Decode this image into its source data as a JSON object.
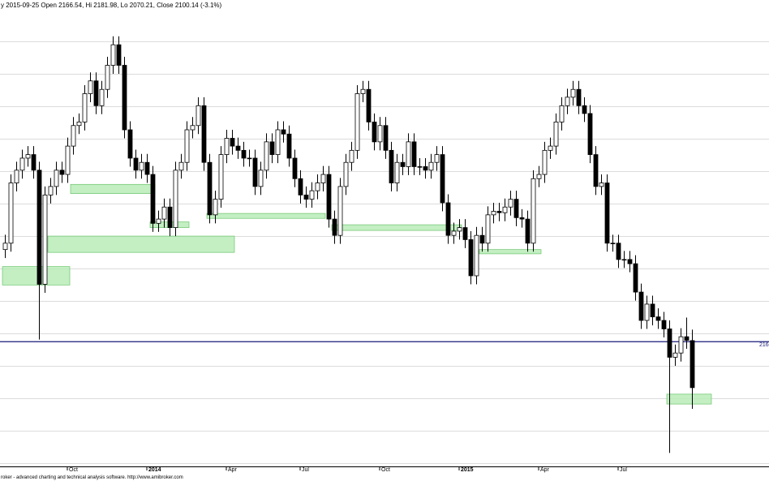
{
  "chart_data": {
    "type": "candlestick",
    "title": "y 2015-09-25 Open 2166.54, Hi 2181.98, Lo 2070.21, Close 2100.14 (-3.1%)",
    "footer": "roker - advanced charting and technical analysis software. http://www.amibroker.com",
    "categories": [
      null,
      null,
      null,
      null,
      null,
      null,
      null,
      null,
      null,
      null,
      null,
      "Oct",
      null,
      null,
      null,
      null,
      null,
      null,
      null,
      null,
      null,
      null,
      null,
      null,
      null,
      "2014",
      null,
      null,
      null,
      null,
      null,
      null,
      null,
      null,
      null,
      null,
      null,
      null,
      null,
      "Apr",
      null,
      null,
      null,
      null,
      null,
      null,
      null,
      null,
      null,
      null,
      null,
      null,
      "Jul",
      null,
      null,
      null,
      null,
      null,
      null,
      null,
      null,
      null,
      null,
      null,
      null,
      null,
      "Oct",
      null,
      null,
      null,
      null,
      null,
      null,
      null,
      null,
      null,
      null,
      null,
      null,
      null,
      "2015",
      null,
      null,
      null,
      null,
      null,
      null,
      null,
      null,
      null,
      null,
      null,
      null,
      null,
      "Apr",
      null,
      null,
      null,
      null,
      null,
      null,
      null,
      null,
      null,
      null,
      null,
      null,
      null,
      "Jul",
      null,
      null,
      null,
      null,
      null,
      null,
      null,
      null,
      null,
      null,
      null,
      null,
      null
    ],
    "open": [
      2295,
      2304,
      2389,
      2407,
      2424,
      2429,
      2407,
      2246,
      2372,
      2384,
      2407,
      2401,
      2441,
      2470,
      2475,
      2515,
      2533,
      2498,
      2521,
      2555,
      2584,
      2555,
      2464,
      2424,
      2407,
      2418,
      2401,
      2332,
      2338,
      2355,
      2326,
      2407,
      2418,
      2464,
      2470,
      2498,
      2418,
      2344,
      2366,
      2429,
      2452,
      2441,
      2435,
      2424,
      2424,
      2384,
      2407,
      2447,
      2429,
      2464,
      2458,
      2424,
      2395,
      2372,
      2366,
      2378,
      2389,
      2401,
      2338,
      2315,
      2384,
      2418,
      2435,
      2515,
      2521,
      2475,
      2447,
      2470,
      2435,
      2389,
      2418,
      2412,
      2447,
      2412,
      2412,
      2407,
      2418,
      2429,
      2361,
      2315,
      2321,
      2326,
      2309,
      2258,
      2315,
      2304,
      2344,
      2349,
      2347,
      2355,
      2366,
      2340,
      2338,
      2304,
      2395,
      2401,
      2435,
      2441,
      2475,
      2498,
      2510,
      2521,
      2498,
      2487,
      2429,
      2384,
      2389,
      2304,
      2304,
      2281,
      2281,
      2275,
      2235,
      2195,
      2218,
      2200,
      2195,
      2183,
      2143,
      2149,
      2172,
      2166.54
    ],
    "high": [
      2316,
      2401,
      2419,
      2436,
      2441,
      2441,
      2419,
      2384,
      2396,
      2419,
      2419,
      2453,
      2482,
      2487,
      2527,
      2545,
      2545,
      2533,
      2567,
      2596,
      2596,
      2567,
      2476,
      2436,
      2430,
      2430,
      2413,
      2350,
      2367,
      2367,
      2419,
      2430,
      2476,
      2482,
      2510,
      2510,
      2430,
      2378,
      2441,
      2464,
      2464,
      2453,
      2447,
      2436,
      2436,
      2419,
      2459,
      2459,
      2476,
      2476,
      2470,
      2436,
      2407,
      2384,
      2390,
      2401,
      2413,
      2413,
      2350,
      2396,
      2430,
      2447,
      2527,
      2533,
      2533,
      2487,
      2482,
      2482,
      2447,
      2430,
      2430,
      2459,
      2459,
      2424,
      2424,
      2430,
      2441,
      2441,
      2373,
      2333,
      2338,
      2338,
      2321,
      2327,
      2327,
      2356,
      2361,
      2361,
      2367,
      2378,
      2378,
      2352,
      2350,
      2407,
      2413,
      2447,
      2453,
      2487,
      2510,
      2522,
      2533,
      2533,
      2510,
      2499,
      2441,
      2401,
      2401,
      2316,
      2316,
      2293,
      2293,
      2287,
      2247,
      2230,
      2230,
      2212,
      2207,
      2195,
      2161,
      2184,
      2199,
      2181.98
    ],
    "low": [
      2283,
      2292,
      2377,
      2395,
      2412,
      2395,
      2168,
      2234,
      2360,
      2372,
      2389,
      2389,
      2429,
      2458,
      2463,
      2503,
      2486,
      2486,
      2509,
      2543,
      2543,
      2452,
      2412,
      2395,
      2395,
      2389,
      2320,
      2320,
      2326,
      2314,
      2314,
      2395,
      2406,
      2452,
      2458,
      2406,
      2332,
      2332,
      2354,
      2417,
      2429,
      2423,
      2412,
      2412,
      2372,
      2372,
      2395,
      2417,
      2417,
      2446,
      2412,
      2383,
      2360,
      2354,
      2354,
      2366,
      2377,
      2326,
      2303,
      2303,
      2372,
      2406,
      2423,
      2503,
      2463,
      2435,
      2435,
      2423,
      2377,
      2377,
      2400,
      2400,
      2400,
      2400,
      2395,
      2395,
      2406,
      2349,
      2303,
      2303,
      2309,
      2297,
      2246,
      2246,
      2292,
      2292,
      2332,
      2335,
      2335,
      2343,
      2328,
      2326,
      2292,
      2292,
      2383,
      2389,
      2423,
      2429,
      2463,
      2486,
      2498,
      2486,
      2475,
      2417,
      2372,
      2372,
      2292,
      2292,
      2269,
      2269,
      2263,
      2223,
      2183,
      2183,
      2188,
      2183,
      2171,
      2008,
      2131,
      2137,
      2155,
      2070.21
    ],
    "close": [
      2304,
      2389,
      2407,
      2424,
      2429,
      2407,
      2246,
      2372,
      2384,
      2407,
      2401,
      2441,
      2470,
      2475,
      2515,
      2533,
      2498,
      2521,
      2555,
      2584,
      2555,
      2464,
      2424,
      2407,
      2418,
      2401,
      2332,
      2338,
      2355,
      2326,
      2407,
      2418,
      2464,
      2470,
      2498,
      2418,
      2344,
      2366,
      2429,
      2452,
      2441,
      2435,
      2424,
      2424,
      2384,
      2407,
      2447,
      2429,
      2464,
      2458,
      2424,
      2395,
      2372,
      2366,
      2378,
      2389,
      2401,
      2338,
      2315,
      2384,
      2418,
      2435,
      2515,
      2521,
      2475,
      2447,
      2470,
      2435,
      2389,
      2418,
      2412,
      2447,
      2412,
      2412,
      2407,
      2418,
      2429,
      2361,
      2315,
      2321,
      2326,
      2309,
      2258,
      2315,
      2304,
      2344,
      2349,
      2347,
      2355,
      2366,
      2340,
      2338,
      2304,
      2395,
      2401,
      2435,
      2441,
      2475,
      2498,
      2510,
      2521,
      2498,
      2487,
      2429,
      2384,
      2389,
      2304,
      2304,
      2281,
      2281,
      2275,
      2235,
      2195,
      2218,
      2200,
      2195,
      2183,
      2143,
      2149,
      2172,
      2167,
      2100.14
    ],
    "up_color": "#ffffff",
    "down_color": "#000000",
    "zones": [
      {
        "from": 0,
        "to": 11,
        "low": 2245,
        "high": 2271
      },
      {
        "from": 8,
        "to": 40,
        "low": 2291,
        "high": 2314
      },
      {
        "from": 12,
        "to": 26,
        "low": 2374,
        "high": 2387
      },
      {
        "from": 26,
        "to": 32,
        "low": 2326,
        "high": 2334
      },
      {
        "from": 36,
        "to": 56,
        "low": 2339,
        "high": 2346
      },
      {
        "from": 58,
        "to": 80,
        "low": 2322,
        "high": 2330
      },
      {
        "from": 84,
        "to": 94,
        "low": 2289,
        "high": 2295
      },
      {
        "from": 117,
        "to": 124,
        "low": 2077,
        "high": 2091
      }
    ],
    "zone_color": "#b8ecb8",
    "hline": 2165,
    "hline_color": "#1a1a7a",
    "ylim": [
      1989,
      2638
    ],
    "grid": true
  }
}
